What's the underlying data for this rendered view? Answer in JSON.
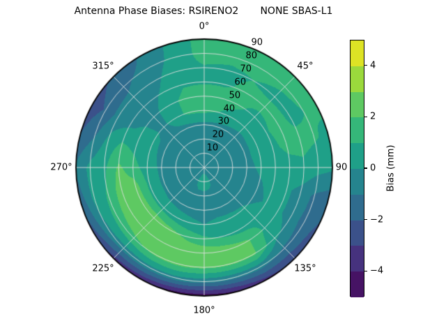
{
  "chart_data": {
    "type": "heatmap",
    "projection": "polar",
    "title": "Antenna Phase Biases: RSIRENO2       NONE SBAS-L1",
    "theta_zero_location": "top",
    "theta_direction": "clockwise",
    "azimuth_tick_labels": [
      "0°",
      "45°",
      "90",
      "135°",
      "180°",
      "225°",
      "270°",
      "315°"
    ],
    "azimuth_tick_deg": [
      0,
      45,
      90,
      135,
      180,
      225,
      270,
      315
    ],
    "elevation_tick_labels": [
      "10",
      "20",
      "30",
      "40",
      "50",
      "60",
      "70",
      "80",
      "90"
    ],
    "elevation_tick_values": [
      10,
      20,
      30,
      40,
      50,
      60,
      70,
      80,
      90
    ],
    "grid_on": true,
    "colorbar": {
      "label": "Bias (mm)",
      "tick_labels": [
        "4",
        "2",
        "0",
        "−2",
        "−4"
      ],
      "tick_values": [
        4,
        2,
        0,
        -2,
        -4
      ],
      "vmin": -5,
      "vmax": 5,
      "level_step": 1,
      "band_colors": [
        "#461364",
        "#46327e",
        "#3b518a",
        "#2f6c8e",
        "#25848e",
        "#1fa088",
        "#35b779",
        "#5ec962",
        "#9bd93c",
        "#dde325"
      ]
    },
    "grid": {
      "azimuth_deg": [
        0,
        15,
        30,
        45,
        60,
        75,
        90,
        105,
        120,
        135,
        150,
        165,
        180,
        195,
        210,
        225,
        240,
        255,
        270,
        285,
        300,
        315,
        330,
        345
      ],
      "elevation_deg": [
        90,
        80,
        70,
        60,
        50,
        40,
        30,
        20,
        10,
        0
      ],
      "bias_mm": [
        [
          -0.4,
          -0.4,
          -0.4,
          -0.4,
          -0.4,
          -0.4,
          -0.4,
          -0.4,
          -0.4,
          -0.4,
          -0.4,
          -0.4,
          -0.4,
          -0.4,
          -0.4,
          -0.4,
          -0.4,
          -0.4,
          -0.4,
          -0.4,
          -0.4,
          -0.4,
          -0.4,
          -0.4
        ],
        [
          -0.5,
          -0.5,
          -0.5,
          -0.5,
          -0.5,
          -0.5,
          -0.5,
          -0.5,
          -0.5,
          -0.5,
          -0.3,
          0.3,
          0.6,
          0.4,
          -0.2,
          -0.4,
          -0.5,
          -0.5,
          -0.5,
          -0.5,
          -0.5,
          -0.5,
          -0.5,
          -0.5
        ],
        [
          -0.5,
          -0.5,
          -0.5,
          -0.5,
          -0.5,
          -0.5,
          -0.5,
          -0.5,
          -0.5,
          -0.5,
          -0.4,
          -0.3,
          -0.3,
          -0.3,
          -0.4,
          -0.5,
          -0.5,
          -0.5,
          -0.5,
          -0.5,
          -0.5,
          -0.5,
          -0.5,
          -0.5
        ],
        [
          -0.3,
          -0.3,
          -0.3,
          -0.3,
          -0.3,
          -0.3,
          -0.3,
          -0.4,
          -0.4,
          -0.4,
          -0.4,
          -0.3,
          -0.3,
          -0.3,
          -0.3,
          -0.3,
          -0.2,
          -0.2,
          -0.2,
          -0.3,
          -0.4,
          -0.5,
          -0.4,
          -0.3
        ],
        [
          1.3,
          1.0,
          0.6,
          0.3,
          0.4,
          0.5,
          0.2,
          -0.1,
          -0.3,
          0.1,
          0.2,
          0.2,
          0.0,
          0.2,
          0.4,
          0.6,
          0.7,
          0.7,
          0.5,
          0.4,
          0.3,
          -0.3,
          0.7,
          1.2
        ],
        [
          1.5,
          1.4,
          1.2,
          0.6,
          0.9,
          0.8,
          0.5,
          0.3,
          0.1,
          0.8,
          0.6,
          0.9,
          1.2,
          1.8,
          2.4,
          2.7,
          2.6,
          2.4,
          1.4,
          0.8,
          0.2,
          -0.4,
          0.6,
          1.3
        ],
        [
          0.9,
          0.9,
          1.2,
          1.4,
          1.4,
          1.2,
          0.7,
          0.2,
          0.2,
          0.8,
          2.2,
          2.6,
          2.8,
          2.8,
          2.8,
          2.8,
          2.7,
          2.6,
          2.2,
          1.2,
          -0.2,
          -0.6,
          0.1,
          0.9
        ],
        [
          0.9,
          0.8,
          1.0,
          0.7,
          0.8,
          1.3,
          0.8,
          -0.4,
          -0.4,
          0.2,
          2.2,
          2.2,
          2.2,
          2.3,
          2.2,
          1.8,
          1.4,
          1.1,
          0.8,
          0.3,
          -0.6,
          -0.8,
          -0.3,
          0.7
        ],
        [
          1.4,
          1.3,
          1.4,
          1.2,
          1.0,
          1.1,
          0.4,
          -1.2,
          -1.4,
          -1.2,
          -0.6,
          -0.7,
          -0.7,
          -0.4,
          -0.4,
          -0.5,
          -0.2,
          0.3,
          0.3,
          -1.0,
          -1.9,
          -1.2,
          -0.7,
          0.4
        ],
        [
          1.5,
          1.3,
          1.4,
          1.5,
          1.2,
          0.8,
          0.2,
          -1.6,
          -2.2,
          -2.8,
          -3.4,
          -4.2,
          -4.6,
          -4.4,
          -3.8,
          -3.4,
          -2.4,
          -1.6,
          -0.8,
          -2.0,
          -2.6,
          -1.8,
          -0.9,
          0.3
        ]
      ]
    }
  }
}
